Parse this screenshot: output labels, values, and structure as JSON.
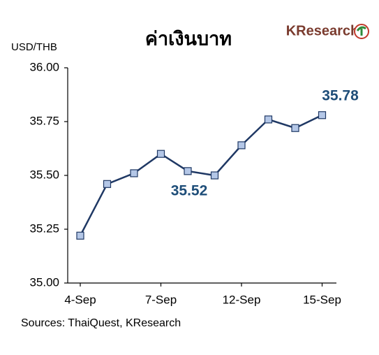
{
  "chart_data": {
    "type": "line",
    "title": "ค่าเงินบาท",
    "logo": "KResearch",
    "y_label": "USD/THB",
    "source": "Sources: ThaiQuest, KResearch",
    "categories": [
      "4-Sep",
      null,
      null,
      "7-Sep",
      null,
      null,
      "12-Sep",
      null,
      null,
      "15-Sep"
    ],
    "series": [
      {
        "name": "USD/THB",
        "color": "#1f3864",
        "marker_color": "#b4c7e7",
        "values": [
          35.22,
          35.46,
          35.51,
          35.6,
          35.52,
          35.5,
          35.64,
          35.76,
          35.72,
          35.78
        ],
        "value_labels": [
          null,
          null,
          null,
          null,
          "35.52",
          null,
          null,
          null,
          null,
          "35.78"
        ]
      }
    ],
    "ylim": [
      35.0,
      36.0
    ],
    "yticks": [
      {
        "value": 35.0,
        "label": "35.00"
      },
      {
        "value": 35.25,
        "label": "35.25"
      },
      {
        "value": 35.5,
        "label": "35.50"
      },
      {
        "value": 35.75,
        "label": "35.75"
      },
      {
        "value": 36.0,
        "label": "36.00"
      }
    ],
    "grid": false
  }
}
